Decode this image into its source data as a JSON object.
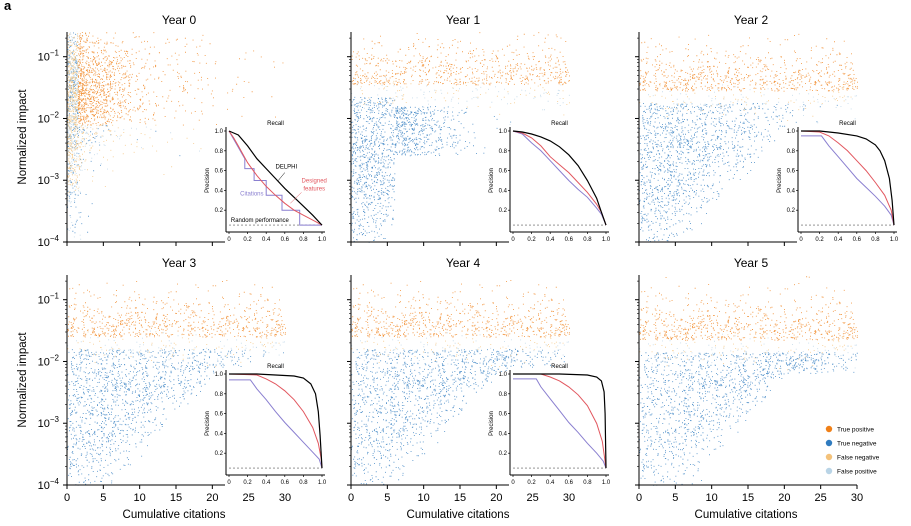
{
  "figure": {
    "panel_letter": "a",
    "colors": {
      "true_positive": "#f08018",
      "true_negative": "#2f7bbf",
      "false_negative": "#f4c27a",
      "false_positive": "#b9d4e6",
      "delphi": "#000000",
      "designed_features": "#e2575f",
      "citations": "#8a7fd0",
      "random": "#555555"
    },
    "legend": [
      {
        "label": "True positive",
        "key": "true_positive"
      },
      {
        "label": "True negative",
        "key": "true_negative"
      },
      {
        "label": "False negative",
        "key": "false_negative"
      },
      {
        "label": "False positive",
        "key": "false_positive"
      }
    ]
  },
  "chart_data": [
    {
      "type": "scatter",
      "title": "Year 0",
      "xlabel": "",
      "ylabel": "Normalized impact",
      "xlim": [
        0,
        30
      ],
      "ylim_log10": [
        -4,
        -0.6
      ],
      "yscale": "log",
      "xticks": [
        0,
        5,
        10,
        15,
        20,
        25,
        30
      ],
      "xticklabels_shown": false,
      "yticks": [
        "10^-1",
        "10^-2",
        "10^-3",
        "10^-4"
      ],
      "threshold_log10": -1.7,
      "x_extent": 30,
      "description": "Points concentrated at low citations (0-3); orange true positives spread up to ~30 citations at impact 1e-3 to 1e-1",
      "inset": {
        "type": "line",
        "xlabel": "Recall",
        "ylabel": "Precision",
        "xticks": [
          "0",
          "0.2",
          "0.4",
          "0.6",
          "0.8",
          "1.0"
        ],
        "yticks": [
          "0.2",
          "0.4",
          "0.6",
          "0.8",
          "1.0"
        ],
        "annotations": [
          "DELPHI",
          "Designed features",
          "Citations",
          "Random performance"
        ],
        "random_precision": 0.05,
        "series": [
          {
            "name": "DELPHI",
            "color_key": "delphi",
            "x": [
              0,
              0.05,
              0.1,
              0.2,
              0.3,
              0.4,
              0.5,
              0.6,
              0.7,
              0.8,
              0.9,
              1.0
            ],
            "y": [
              1.0,
              0.98,
              0.96,
              0.85,
              0.72,
              0.62,
              0.52,
              0.42,
              0.33,
              0.24,
              0.15,
              0.05
            ]
          },
          {
            "name": "Designed features",
            "color_key": "designed_features",
            "x": [
              0,
              0.05,
              0.1,
              0.2,
              0.3,
              0.4,
              0.5,
              0.6,
              0.7,
              0.8,
              0.9,
              1.0
            ],
            "y": [
              1.0,
              0.93,
              0.85,
              0.68,
              0.55,
              0.44,
              0.35,
              0.27,
              0.2,
              0.15,
              0.1,
              0.05
            ]
          },
          {
            "name": "Citations",
            "color_key": "citations",
            "step": true,
            "x": [
              0,
              0.17,
              0.17,
              0.27,
              0.27,
              0.4,
              0.4,
              0.57,
              0.57,
              0.76,
              0.76,
              1.0
            ],
            "y": [
              1.0,
              0.72,
              0.62,
              0.62,
              0.5,
              0.5,
              0.35,
              0.35,
              0.2,
              0.2,
              0.05,
              0.05
            ]
          }
        ]
      }
    },
    {
      "type": "scatter",
      "title": "Year 1",
      "xlim": [
        0,
        30
      ],
      "ylim_log10": [
        -4,
        -0.6
      ],
      "yscale": "log",
      "xticks": [
        0,
        5,
        10,
        15,
        20,
        25,
        30
      ],
      "xticklabels_shown": false,
      "threshold_log10": -1.6,
      "x_extent": 30,
      "inset": {
        "type": "line",
        "xlabel": "Recall",
        "ylabel": "Precision",
        "xticks": [
          "0",
          "0.2",
          "0.4",
          "0.6",
          "0.8",
          "1.0"
        ],
        "yticks": [
          "0.2",
          "0.4",
          "0.6",
          "0.8",
          "1.0"
        ],
        "random_precision": 0.05,
        "series": [
          {
            "name": "DELPHI",
            "color_key": "delphi",
            "x": [
              0,
              0.1,
              0.2,
              0.3,
              0.4,
              0.5,
              0.6,
              0.7,
              0.8,
              0.9,
              0.95,
              1.0
            ],
            "y": [
              1.0,
              0.99,
              0.97,
              0.94,
              0.9,
              0.84,
              0.76,
              0.65,
              0.5,
              0.32,
              0.18,
              0.05
            ]
          },
          {
            "name": "Designed features",
            "color_key": "designed_features",
            "x": [
              0,
              0.1,
              0.2,
              0.3,
              0.4,
              0.5,
              0.6,
              0.7,
              0.8,
              0.9,
              0.95,
              1.0
            ],
            "y": [
              1.0,
              0.98,
              0.93,
              0.85,
              0.74,
              0.66,
              0.58,
              0.48,
              0.38,
              0.26,
              0.18,
              0.05
            ]
          },
          {
            "name": "Citations",
            "color_key": "citations",
            "x": [
              0,
              0.1,
              0.2,
              0.3,
              0.4,
              0.5,
              0.6,
              0.7,
              0.8,
              0.9,
              0.95,
              1.0
            ],
            "y": [
              1.0,
              0.97,
              0.88,
              0.8,
              0.7,
              0.6,
              0.5,
              0.41,
              0.33,
              0.22,
              0.16,
              0.05
            ]
          }
        ]
      }
    },
    {
      "type": "scatter",
      "title": "Year 2",
      "xlim": [
        0,
        30
      ],
      "ylim_log10": [
        -4,
        -0.6
      ],
      "yscale": "log",
      "xticks": [
        0,
        5,
        10,
        15,
        20,
        25,
        30
      ],
      "xticklabels_shown": false,
      "threshold_log10": -1.7,
      "x_extent": 30,
      "inset": {
        "type": "line",
        "xlabel": "Recall",
        "ylabel": "Precision",
        "xticks": [
          "0",
          "0.2",
          "0.4",
          "0.6",
          "0.8",
          "1.0"
        ],
        "yticks": [
          "0.2",
          "0.4",
          "0.6",
          "0.8",
          "1.0"
        ],
        "random_precision": 0.05,
        "series": [
          {
            "name": "DELPHI",
            "color_key": "delphi",
            "x": [
              0,
              0.2,
              0.4,
              0.6,
              0.7,
              0.8,
              0.85,
              0.9,
              0.95,
              0.98,
              1.0
            ],
            "y": [
              1.0,
              1.0,
              0.98,
              0.95,
              0.92,
              0.86,
              0.8,
              0.7,
              0.52,
              0.3,
              0.05
            ]
          },
          {
            "name": "Designed features",
            "color_key": "designed_features",
            "x": [
              0,
              0.2,
              0.3,
              0.4,
              0.5,
              0.6,
              0.7,
              0.8,
              0.9,
              0.97,
              1.0
            ],
            "y": [
              1.0,
              0.99,
              0.95,
              0.88,
              0.8,
              0.7,
              0.6,
              0.48,
              0.35,
              0.2,
              0.05
            ]
          },
          {
            "name": "Citations",
            "color_key": "citations",
            "x": [
              0,
              0.22,
              0.3,
              0.4,
              0.5,
              0.6,
              0.7,
              0.8,
              0.9,
              0.97,
              1.0
            ],
            "y": [
              0.95,
              0.95,
              0.85,
              0.74,
              0.63,
              0.52,
              0.43,
              0.34,
              0.24,
              0.15,
              0.05
            ]
          }
        ]
      }
    },
    {
      "type": "scatter",
      "title": "Year 3",
      "xlabel": "Cumulative citations",
      "ylabel": "Normalized impact",
      "xlim": [
        0,
        30
      ],
      "ylim_log10": [
        -4,
        -0.6
      ],
      "yscale": "log",
      "xticks": [
        0,
        5,
        10,
        15,
        20,
        25,
        30
      ],
      "xticklabels_shown": true,
      "yticks": [
        "10^-1",
        "10^-2",
        "10^-3",
        "10^-4"
      ],
      "threshold_log10": -1.75,
      "x_extent": 30,
      "inset": {
        "type": "line",
        "xlabel": "Recall",
        "ylabel": "Precision",
        "xticks": [
          "0",
          "0.2",
          "0.4",
          "0.6",
          "0.8",
          "1.0"
        ],
        "yticks": [
          "0.2",
          "0.4",
          "0.6",
          "0.8",
          "1.0"
        ],
        "random_precision": 0.05,
        "series": [
          {
            "name": "DELPHI",
            "color_key": "delphi",
            "x": [
              0,
              0.3,
              0.5,
              0.7,
              0.8,
              0.88,
              0.93,
              0.96,
              0.98,
              1.0
            ],
            "y": [
              1.0,
              1.0,
              0.99,
              0.98,
              0.96,
              0.9,
              0.8,
              0.62,
              0.38,
              0.05
            ]
          },
          {
            "name": "Designed features",
            "color_key": "designed_features",
            "x": [
              0,
              0.3,
              0.4,
              0.5,
              0.6,
              0.7,
              0.8,
              0.9,
              0.96,
              0.99,
              1.0
            ],
            "y": [
              1.0,
              0.99,
              0.95,
              0.9,
              0.83,
              0.74,
              0.62,
              0.46,
              0.3,
              0.15,
              0.05
            ]
          },
          {
            "name": "Citations",
            "color_key": "citations",
            "x": [
              0,
              0.23,
              0.3,
              0.4,
              0.5,
              0.6,
              0.7,
              0.8,
              0.9,
              0.97,
              1.0
            ],
            "y": [
              0.94,
              0.94,
              0.85,
              0.74,
              0.62,
              0.51,
              0.41,
              0.31,
              0.21,
              0.14,
              0.05
            ]
          }
        ]
      }
    },
    {
      "type": "scatter",
      "title": "Year 4",
      "xlabel": "Cumulative citations",
      "xlim": [
        0,
        30
      ],
      "ylim_log10": [
        -4,
        -0.6
      ],
      "yscale": "log",
      "xticks": [
        0,
        5,
        10,
        15,
        20,
        25,
        30
      ],
      "xticklabels_shown": true,
      "threshold_log10": -1.75,
      "x_extent": 30,
      "inset": {
        "type": "line",
        "xlabel": "Recall",
        "ylabel": "Precision",
        "xticks": [
          "0",
          "0.2",
          "0.4",
          "0.6",
          "0.8",
          "1.0"
        ],
        "yticks": [
          "0.2",
          "0.4",
          "0.6",
          "0.8",
          "1.0"
        ],
        "random_precision": 0.05,
        "series": [
          {
            "name": "DELPHI",
            "color_key": "delphi",
            "x": [
              0,
              0.5,
              0.8,
              0.9,
              0.95,
              0.98,
              0.99,
              1.0
            ],
            "y": [
              1.0,
              1.0,
              0.99,
              0.97,
              0.93,
              0.82,
              0.6,
              0.05
            ]
          },
          {
            "name": "Designed features",
            "color_key": "designed_features",
            "x": [
              0,
              0.3,
              0.4,
              0.5,
              0.6,
              0.7,
              0.8,
              0.9,
              0.96,
              1.0
            ],
            "y": [
              1.0,
              1.0,
              0.97,
              0.93,
              0.87,
              0.79,
              0.68,
              0.5,
              0.32,
              0.05
            ]
          },
          {
            "name": "Citations",
            "color_key": "citations",
            "x": [
              0,
              0.25,
              0.3,
              0.4,
              0.5,
              0.6,
              0.7,
              0.8,
              0.9,
              0.97,
              1.0
            ],
            "y": [
              0.95,
              0.95,
              0.87,
              0.75,
              0.63,
              0.51,
              0.41,
              0.3,
              0.2,
              0.12,
              0.05
            ]
          }
        ]
      }
    },
    {
      "type": "scatter",
      "title": "Year 5",
      "xlabel": "Cumulative citations",
      "xlim": [
        0,
        30
      ],
      "ylim_log10": [
        -4,
        -0.6
      ],
      "yscale": "log",
      "xticks": [
        0,
        5,
        10,
        15,
        20,
        25,
        30
      ],
      "xticklabels_shown": true,
      "threshold_log10": -1.8,
      "x_extent": 30,
      "legend_position": "bottom-right"
    }
  ]
}
